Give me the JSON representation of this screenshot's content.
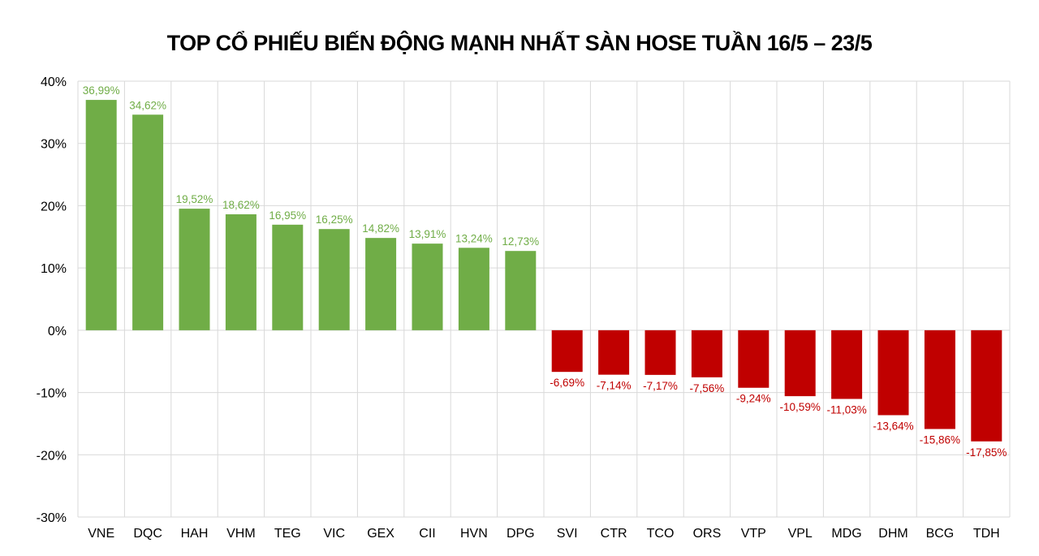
{
  "chart_data": {
    "type": "bar",
    "title": "TOP CỔ PHIẾU BIẾN ĐỘNG MẠNH NHẤT SÀN HOSE TUẦN 16/5 – 23/5",
    "xlabel": "",
    "ylabel": "",
    "ylim": [
      -30,
      40
    ],
    "yticks": [
      40,
      30,
      20,
      10,
      0,
      -10,
      -20,
      -30
    ],
    "ytick_labels": [
      "40%",
      "30%",
      "20%",
      "10%",
      "0%",
      "-10%",
      "-20%",
      "-30%"
    ],
    "grid": true,
    "categories": [
      "VNE",
      "DQC",
      "HAH",
      "VHM",
      "TEG",
      "VIC",
      "GEX",
      "CII",
      "HVN",
      "DPG",
      "SVI",
      "CTR",
      "TCO",
      "ORS",
      "VTP",
      "VPL",
      "MDG",
      "DHM",
      "BCG",
      "TDH"
    ],
    "values": [
      36.99,
      34.62,
      19.52,
      18.62,
      16.95,
      16.25,
      14.82,
      13.91,
      13.24,
      12.73,
      -6.69,
      -7.14,
      -7.17,
      -7.56,
      -9.24,
      -10.59,
      -11.03,
      -13.64,
      -15.86,
      -17.85
    ],
    "data_labels": [
      "36,99%",
      "34,62%",
      "19,52%",
      "18,62%",
      "16,95%",
      "16,25%",
      "14,82%",
      "13,91%",
      "13,24%",
      "12,73%",
      "-6,69%",
      "-7,14%",
      "-7,17%",
      "-7,56%",
      "-9,24%",
      "-10,59%",
      "-11,03%",
      "-13,64%",
      "-15,86%",
      "-17,85%"
    ],
    "colors": {
      "positive": "#70AD47",
      "negative": "#C00000"
    }
  }
}
